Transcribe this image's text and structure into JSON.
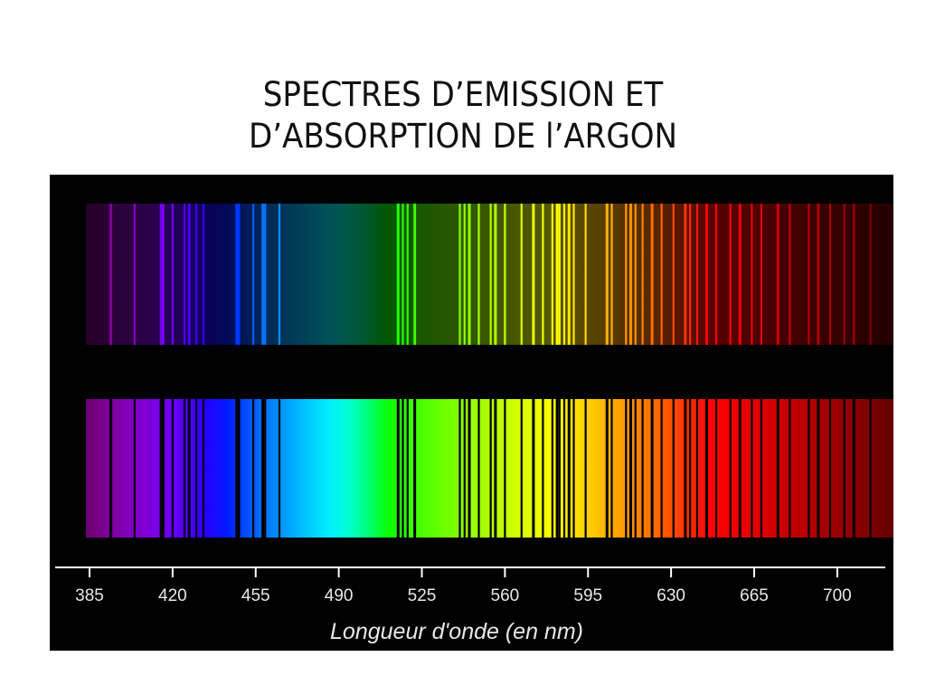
{
  "title": {
    "line1": "SPECTRES D’EMISSION ET",
    "line2": "D’ABSORPTION DE l’ARGON"
  },
  "chart_data": {
    "type": "spectrum",
    "xlabel": "Longueur d'onde (en nm)",
    "xlim": [
      385,
      720
    ],
    "ticks": [
      385,
      420,
      455,
      490,
      525,
      560,
      595,
      630,
      665,
      700
    ],
    "tick_labels": [
      "385",
      "420",
      "455",
      "490",
      "525",
      "560",
      "595",
      "630",
      "665",
      "700"
    ],
    "colors": {
      "background": "#000000",
      "axis": "#ffffff",
      "text": "#e8e8e8"
    },
    "lines_nm": [
      394,
      404,
      415,
      416,
      420,
      425,
      427,
      430,
      433,
      447,
      448,
      454,
      458,
      459,
      465,
      515,
      517,
      519,
      522,
      541,
      543,
      545,
      549,
      554,
      556,
      560,
      567,
      572,
      576,
      580,
      582,
      583,
      585,
      587,
      589,
      594,
      603,
      605,
      611,
      613,
      615,
      618,
      622,
      626,
      631,
      636,
      638,
      641,
      645,
      649,
      655,
      659,
      664,
      668,
      675,
      680,
      688,
      692,
      697,
      703,
      707,
      714
    ],
    "spectra": [
      {
        "kind": "emission",
        "position": "top"
      },
      {
        "kind": "absorption",
        "position": "bottom"
      }
    ]
  }
}
